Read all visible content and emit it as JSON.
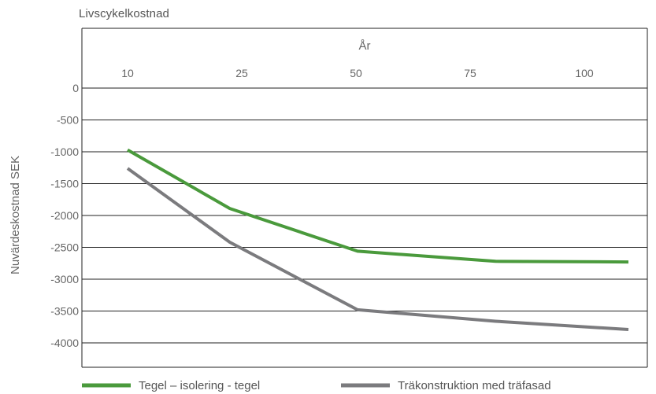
{
  "chart_data": {
    "type": "line",
    "title": "Livscykelkostnad",
    "xlabel": "År",
    "ylabel": "Nuvärdeskostnad SEK",
    "categories": [
      "10",
      "25",
      "50",
      "75",
      "100"
    ],
    "x_ticks": [
      "10",
      "25",
      "50",
      "75",
      "100"
    ],
    "y_ticks": [
      0,
      -500,
      -1000,
      -1500,
      -2000,
      -2500,
      -3000,
      -3500,
      -4000
    ],
    "ylim": [
      -4350,
      0
    ],
    "x_axis_position": "top",
    "grid": true,
    "legend_position": "bottom",
    "series": [
      {
        "name": "Tegel – isolering - tegel",
        "color": "#4a9a3c",
        "points": [
          {
            "x": 10,
            "y": -970
          },
          {
            "x": 30,
            "y": -1890
          },
          {
            "x": 55,
            "y": -2560
          },
          {
            "x": 82,
            "y": -2720
          },
          {
            "x": 108,
            "y": -2730
          }
        ]
      },
      {
        "name": "Träkonstruktion med träfasad",
        "color": "#7b7b7e",
        "points": [
          {
            "x": 10,
            "y": -1260
          },
          {
            "x": 30,
            "y": -2420
          },
          {
            "x": 55,
            "y": -3480
          },
          {
            "x": 82,
            "y": -3660
          },
          {
            "x": 108,
            "y": -3790
          }
        ]
      }
    ]
  }
}
